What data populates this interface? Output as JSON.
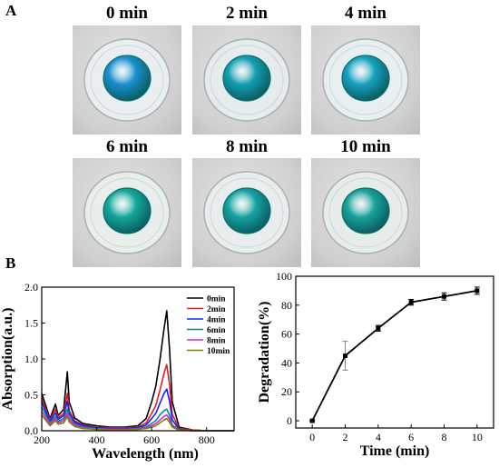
{
  "panels": {
    "a_label": "A",
    "b_label": "B"
  },
  "photos": [
    {
      "title": "0 min",
      "color": "#1a8fd0",
      "ring": "#e9eef0"
    },
    {
      "title": "2 min",
      "color": "#129fb0",
      "ring": "#e5eced"
    },
    {
      "title": "4 min",
      "color": "#15a2c0",
      "ring": "#e8eff0"
    },
    {
      "title": "6 min",
      "color": "#15a89a",
      "ring": "#e7eeec"
    },
    {
      "title": "8 min",
      "color": "#16a3a3",
      "ring": "#e8eeed"
    },
    {
      "title": "10 min",
      "color": "#1aa39a",
      "ring": "#e6ecea"
    }
  ],
  "chart_data": [
    {
      "type": "line",
      "xlabel": "Wavelength (nm)",
      "ylabel": "Absorption(a.u.)",
      "xlim": [
        200,
        900
      ],
      "ylim": [
        0,
        2.0
      ],
      "xticks": [
        200,
        400,
        600,
        800
      ],
      "yticks": [
        0.0,
        0.5,
        1.0,
        1.5,
        2.0
      ],
      "legend_position": "top-right",
      "x": [
        200,
        230,
        250,
        260,
        280,
        293,
        300,
        320,
        350,
        400,
        450,
        500,
        550,
        580,
        600,
        615,
        630,
        645,
        655,
        665,
        675,
        700,
        750,
        800,
        900
      ],
      "series": [
        {
          "name": "0min",
          "color": "#000000",
          "values": [
            0.52,
            0.17,
            0.37,
            0.21,
            0.3,
            0.82,
            0.4,
            0.18,
            0.1,
            0.07,
            0.05,
            0.05,
            0.07,
            0.17,
            0.4,
            0.62,
            0.98,
            1.42,
            1.67,
            1.15,
            0.4,
            0.05,
            0.01,
            0.0,
            0.0
          ]
        },
        {
          "name": "2min",
          "color": "#e02020",
          "values": [
            0.45,
            0.15,
            0.3,
            0.18,
            0.24,
            0.52,
            0.28,
            0.14,
            0.08,
            0.05,
            0.04,
            0.04,
            0.05,
            0.11,
            0.24,
            0.35,
            0.56,
            0.8,
            0.92,
            0.65,
            0.23,
            0.03,
            0.01,
            0.0,
            0.0
          ]
        },
        {
          "name": "4min",
          "color": "#1a1aff",
          "values": [
            0.4,
            0.13,
            0.25,
            0.16,
            0.21,
            0.41,
            0.24,
            0.12,
            0.07,
            0.04,
            0.03,
            0.03,
            0.04,
            0.08,
            0.17,
            0.24,
            0.38,
            0.52,
            0.58,
            0.42,
            0.15,
            0.02,
            0.0,
            0.0,
            0.0
          ]
        },
        {
          "name": "6min",
          "color": "#008b8b",
          "values": [
            0.33,
            0.11,
            0.2,
            0.13,
            0.17,
            0.3,
            0.19,
            0.1,
            0.05,
            0.03,
            0.02,
            0.02,
            0.03,
            0.05,
            0.1,
            0.14,
            0.22,
            0.28,
            0.3,
            0.22,
            0.08,
            0.01,
            0.0,
            0.0,
            0.0
          ]
        },
        {
          "name": "8min",
          "color": "#e020e0",
          "values": [
            0.27,
            0.09,
            0.17,
            0.11,
            0.14,
            0.24,
            0.15,
            0.08,
            0.04,
            0.02,
            0.02,
            0.02,
            0.02,
            0.04,
            0.07,
            0.1,
            0.15,
            0.2,
            0.22,
            0.16,
            0.06,
            0.01,
            0.0,
            0.0,
            0.0
          ]
        },
        {
          "name": "10min",
          "color": "#808000",
          "values": [
            0.22,
            0.07,
            0.14,
            0.09,
            0.11,
            0.2,
            0.12,
            0.06,
            0.03,
            0.02,
            0.01,
            0.01,
            0.02,
            0.03,
            0.05,
            0.07,
            0.11,
            0.15,
            0.17,
            0.12,
            0.05,
            0.01,
            0.0,
            0.0,
            0.0
          ]
        }
      ]
    },
    {
      "type": "line",
      "xlabel": "Time (min)",
      "ylabel": "Degradation(%)",
      "xlim": [
        -1,
        11
      ],
      "ylim": [
        -5,
        100
      ],
      "xticks": [
        0,
        2,
        4,
        6,
        8,
        10
      ],
      "yticks": [
        0,
        20,
        40,
        60,
        80,
        100
      ],
      "x": [
        0,
        2,
        4,
        6,
        8,
        10
      ],
      "values": [
        0,
        45,
        64,
        82,
        86,
        90
      ],
      "errors": [
        0.5,
        10,
        2,
        2,
        2.5,
        2.5
      ],
      "color": "#000000"
    }
  ]
}
